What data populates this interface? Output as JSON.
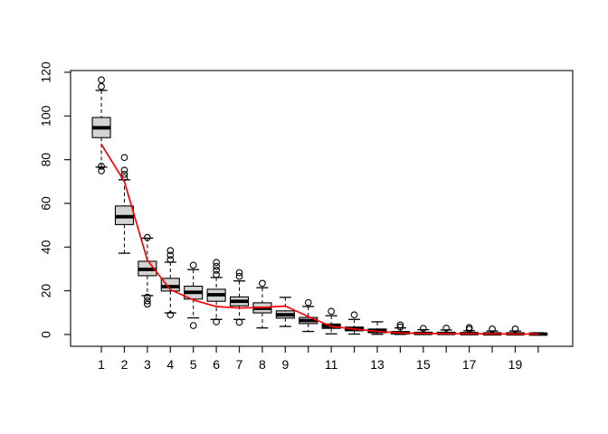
{
  "chart_data": {
    "type": "boxplot",
    "title": "",
    "xlabel": "",
    "ylabel": "",
    "grid": false,
    "legend": "none",
    "xlim": [
      -0.34,
      21.5
    ],
    "ylim": [
      -5.4,
      120.8
    ],
    "y_ticks": [
      0,
      20,
      40,
      60,
      80,
      100,
      120
    ],
    "x_positions": [
      1,
      2,
      3,
      4,
      5,
      6,
      7,
      8,
      9,
      10,
      11,
      12,
      13,
      14,
      15,
      16,
      17,
      18,
      19,
      20
    ],
    "x_tick_labels": [
      "1",
      "2",
      "3",
      "4",
      "5",
      "6",
      "7",
      "8",
      "9",
      "",
      "11",
      "",
      "13",
      "",
      "15",
      "",
      "17",
      "",
      "19",
      ""
    ],
    "boxes": [
      {
        "x": 1,
        "q1": 90.1,
        "median": 94.6,
        "q3": 99.3,
        "whisker_low": 76.6,
        "whisker_high": 111.7,
        "outliers": [
          116.5,
          113.5,
          77.0,
          74.9
        ]
      },
      {
        "x": 2,
        "q1": 50.3,
        "median": 53.9,
        "q3": 58.8,
        "whisker_low": 37.2,
        "whisker_high": 70.8,
        "outliers": [
          81.0,
          75.2,
          73.3,
          71.8
        ]
      },
      {
        "x": 3,
        "q1": 26.9,
        "median": 29.8,
        "q3": 33.5,
        "whisker_low": 17.8,
        "whisker_high": 44.1,
        "outliers": [
          44.4,
          17.1,
          15.4,
          13.9
        ]
      },
      {
        "x": 4,
        "q1": 19.9,
        "median": 21.9,
        "q3": 25.7,
        "whisker_low": 9.9,
        "whisker_high": 33.1,
        "outliers": [
          38.4,
          36.3,
          34.3,
          9.0
        ]
      },
      {
        "x": 5,
        "q1": 16.2,
        "median": 19.3,
        "q3": 22.1,
        "whisker_low": 7.6,
        "whisker_high": 29.7,
        "outliers": [
          31.7,
          4.1
        ]
      },
      {
        "x": 6,
        "q1": 15.2,
        "median": 18.2,
        "q3": 20.7,
        "whisker_low": 6.9,
        "whisker_high": 26.1,
        "outliers": [
          33.0,
          31.2,
          29.4,
          27.4,
          5.8
        ]
      },
      {
        "x": 7,
        "q1": 13.1,
        "median": 15.2,
        "q3": 17.2,
        "whisker_low": 6.9,
        "whisker_high": 24.5,
        "outliers": [
          28.3,
          26.6,
          5.6
        ]
      },
      {
        "x": 8,
        "q1": 9.9,
        "median": 12.0,
        "q3": 14.5,
        "whisker_low": 3.0,
        "whisker_high": 21.4,
        "outliers": [
          23.4
        ]
      },
      {
        "x": 9,
        "q1": 7.5,
        "median": 9.0,
        "q3": 10.8,
        "whisker_low": 3.7,
        "whisker_high": 17.0,
        "outliers": []
      },
      {
        "x": 10,
        "q1": 5.0,
        "median": 6.4,
        "q3": 7.8,
        "whisker_low": 1.4,
        "whisker_high": 12.8,
        "outliers": [
          14.6
        ]
      },
      {
        "x": 11,
        "q1": 2.8,
        "median": 3.8,
        "q3": 4.8,
        "whisker_low": 0.3,
        "whisker_high": 8.6,
        "outliers": [
          10.6
        ]
      },
      {
        "x": 12,
        "q1": 1.7,
        "median": 2.5,
        "q3": 3.4,
        "whisker_low": 0.2,
        "whisker_high": 6.9,
        "outliers": [
          9.0
        ]
      },
      {
        "x": 13,
        "q1": 0.8,
        "median": 1.5,
        "q3": 2.5,
        "whisker_low": 0.1,
        "whisker_high": 5.8,
        "outliers": []
      },
      {
        "x": 14,
        "q1": 0.3,
        "median": 0.8,
        "q3": 1.3,
        "whisker_low": 0.05,
        "whisker_high": 3.0,
        "outliers": [
          4.4,
          3.4
        ]
      },
      {
        "x": 15,
        "q1": 0.2,
        "median": 0.5,
        "q3": 1.0,
        "whisker_low": 0.03,
        "whisker_high": 2.2,
        "outliers": [
          2.8
        ]
      },
      {
        "x": 16,
        "q1": 0.2,
        "median": 0.5,
        "q3": 0.9,
        "whisker_low": 0.03,
        "whisker_high": 2.1,
        "outliers": [
          2.9
        ]
      },
      {
        "x": 17,
        "q1": 0.15,
        "median": 0.4,
        "q3": 0.7,
        "whisker_low": 0.02,
        "whisker_high": 1.7,
        "outliers": [
          3.2,
          2.4
        ]
      },
      {
        "x": 18,
        "q1": 0.1,
        "median": 0.3,
        "q3": 0.6,
        "whisker_low": 0.02,
        "whisker_high": 1.6,
        "outliers": [
          2.5
        ]
      },
      {
        "x": 19,
        "q1": 0.1,
        "median": 0.3,
        "q3": 0.6,
        "whisker_low": 0.02,
        "whisker_high": 1.6,
        "outliers": [
          2.5
        ]
      },
      {
        "x": 20,
        "q1": 0.05,
        "median": 0.2,
        "q3": 0.4,
        "whisker_low": 0.01,
        "whisker_high": 0.8,
        "outliers": []
      }
    ],
    "line_series": {
      "name": "overlay-line",
      "x": [
        1,
        2,
        3,
        4,
        5,
        6,
        7,
        8,
        9,
        10,
        11,
        12,
        13,
        14,
        15,
        16,
        17,
        18,
        19,
        20
      ],
      "values": [
        87,
        70,
        34,
        20.5,
        15.8,
        12.8,
        12.1,
        12.4,
        13.0,
        8.2,
        3.7,
        2.5,
        1.4,
        0.7,
        0.5,
        0.4,
        0.35,
        0.3,
        0.25,
        0.2
      ]
    },
    "colors": {
      "box_fill": "#d3d3d3",
      "box_border": "#000000",
      "median": "#000000",
      "whisker": "#000000",
      "outlier": "#000000",
      "line": "#ff0000",
      "frame": "#1a1a1a",
      "background": "#ffffff"
    }
  }
}
